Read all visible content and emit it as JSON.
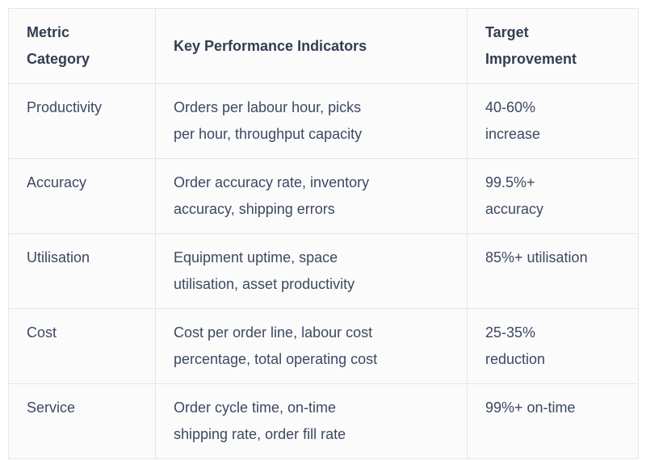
{
  "table": {
    "columns": [
      {
        "label": "Metric\nCategory"
      },
      {
        "label": "Key Performance Indicators"
      },
      {
        "label": "Target\nImprovement"
      }
    ],
    "rows": [
      {
        "category": "Productivity",
        "kpis": "Orders per labour hour, picks\nper hour, throughput capacity",
        "target": "40-60%\nincrease"
      },
      {
        "category": "Accuracy",
        "kpis": "Order accuracy rate, inventory\naccuracy, shipping errors",
        "target": "99.5%+\naccuracy"
      },
      {
        "category": "Utilisation",
        "kpis": "Equipment uptime, space\nutilisation, asset productivity",
        "target": "85%+ utilisation"
      },
      {
        "category": "Cost",
        "kpis": "Cost per order line, labour cost\npercentage, total operating cost",
        "target": "25-35%\nreduction"
      },
      {
        "category": "Service",
        "kpis": "Order cycle time, on-time\nshipping rate, order fill rate",
        "target": "99%+ on-time"
      }
    ]
  },
  "colors": {
    "border": "#e3e6ea",
    "cell_background": "#fbfbfc",
    "header_text": "#333d52",
    "body_text": "#3d4961",
    "page_background": "#ffffff"
  }
}
